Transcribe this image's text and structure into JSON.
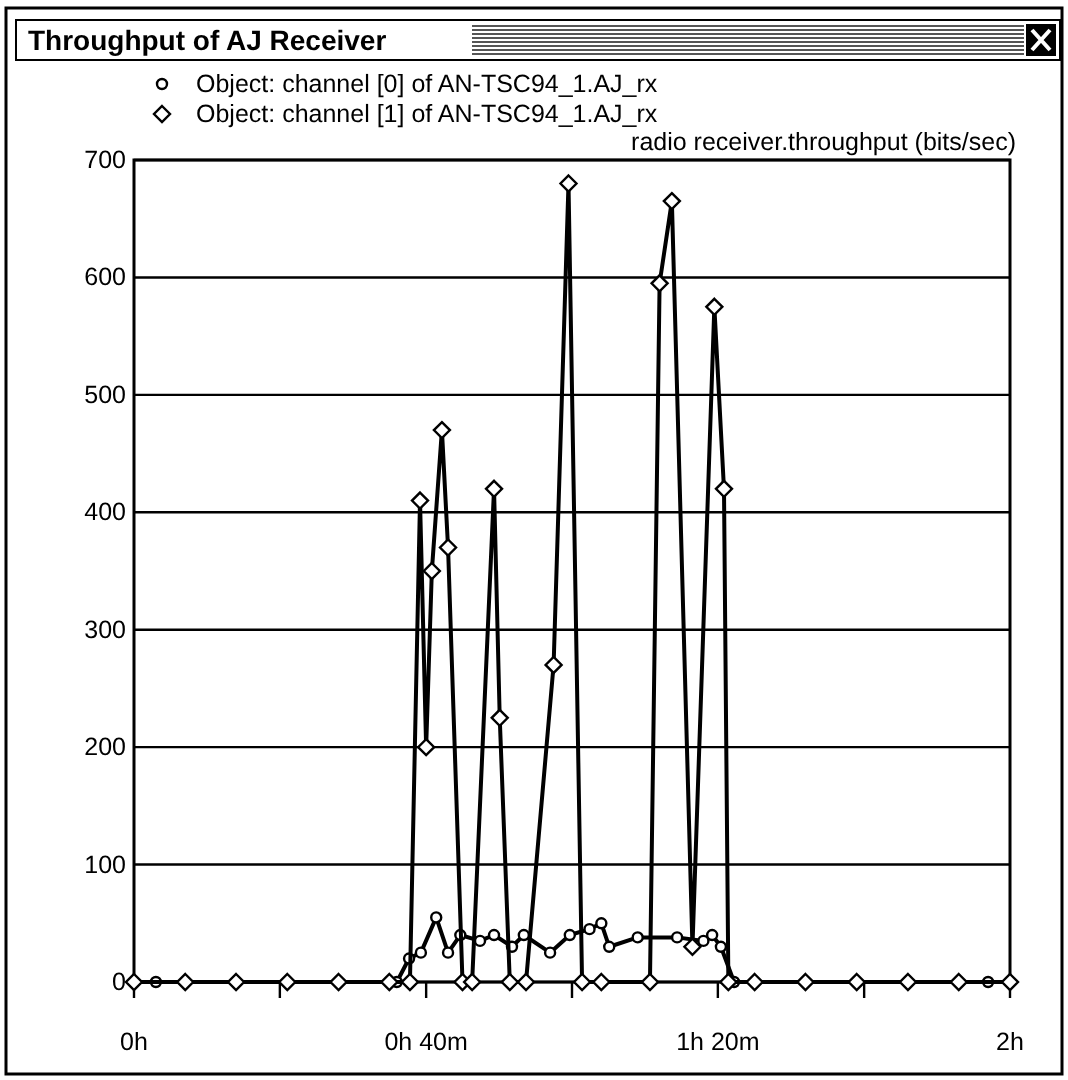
{
  "chart_data": {
    "type": "line",
    "title": "Throughput of AJ Receiver",
    "subtitle": "radio receiver.throughput (bits/sec)",
    "xlim": [
      0,
      2
    ],
    "ylim": [
      0,
      700
    ],
    "xticks": [
      {
        "value": 0,
        "label": "0h"
      },
      {
        "value": 0.333,
        "label": null
      },
      {
        "value": 0.667,
        "label": "0h 40m"
      },
      {
        "value": 1,
        "label": null
      },
      {
        "value": 1.333,
        "label": "1h 20m"
      },
      {
        "value": 1.667,
        "label": null
      },
      {
        "value": 2,
        "label": "2h"
      }
    ],
    "yticks": [
      0,
      100,
      200,
      300,
      400,
      500,
      600,
      700
    ],
    "grid": "y",
    "legend": "top",
    "line_style": "solid",
    "series": [
      {
        "name": "Object: channel [0] of AN-TSC94_1.AJ_rx",
        "color": "#000000",
        "marker": "circle",
        "x": [
          0.05,
          0.6,
          0.628,
          0.655,
          0.69,
          0.717,
          0.745,
          0.79,
          0.822,
          0.863,
          0.89,
          0.95,
          0.995,
          1.04,
          1.067,
          1.085,
          1.15,
          1.24,
          1.3,
          1.32,
          1.34,
          1.37,
          1.95
        ],
        "values": [
          0,
          0,
          20,
          25,
          55,
          25,
          40,
          35,
          40,
          30,
          40,
          25,
          40,
          45,
          50,
          30,
          38,
          38,
          35,
          40,
          30,
          0,
          0
        ]
      },
      {
        "name": "Object: channel [1] of AN-TSC94_1.AJ_rx",
        "color": "#000000",
        "marker": "diamond",
        "x": [
          0,
          0.117,
          0.233,
          0.35,
          0.467,
          0.583,
          0.63,
          0.653,
          0.667,
          0.68,
          0.703,
          0.717,
          0.75,
          0.772,
          0.822,
          0.835,
          0.858,
          0.895,
          0.958,
          0.992,
          1.023,
          1.067,
          1.178,
          1.2,
          1.228,
          1.275,
          1.325,
          1.347,
          1.357,
          1.417,
          1.533,
          1.65,
          1.767,
          1.883,
          2
        ],
        "values": [
          0,
          0,
          0,
          0,
          0,
          0,
          0,
          410,
          200,
          350,
          470,
          370,
          0,
          0,
          420,
          225,
          0,
          0,
          270,
          680,
          0,
          0,
          0,
          595,
          665,
          30,
          575,
          420,
          0,
          0,
          0,
          0,
          0,
          0,
          0
        ]
      }
    ]
  }
}
